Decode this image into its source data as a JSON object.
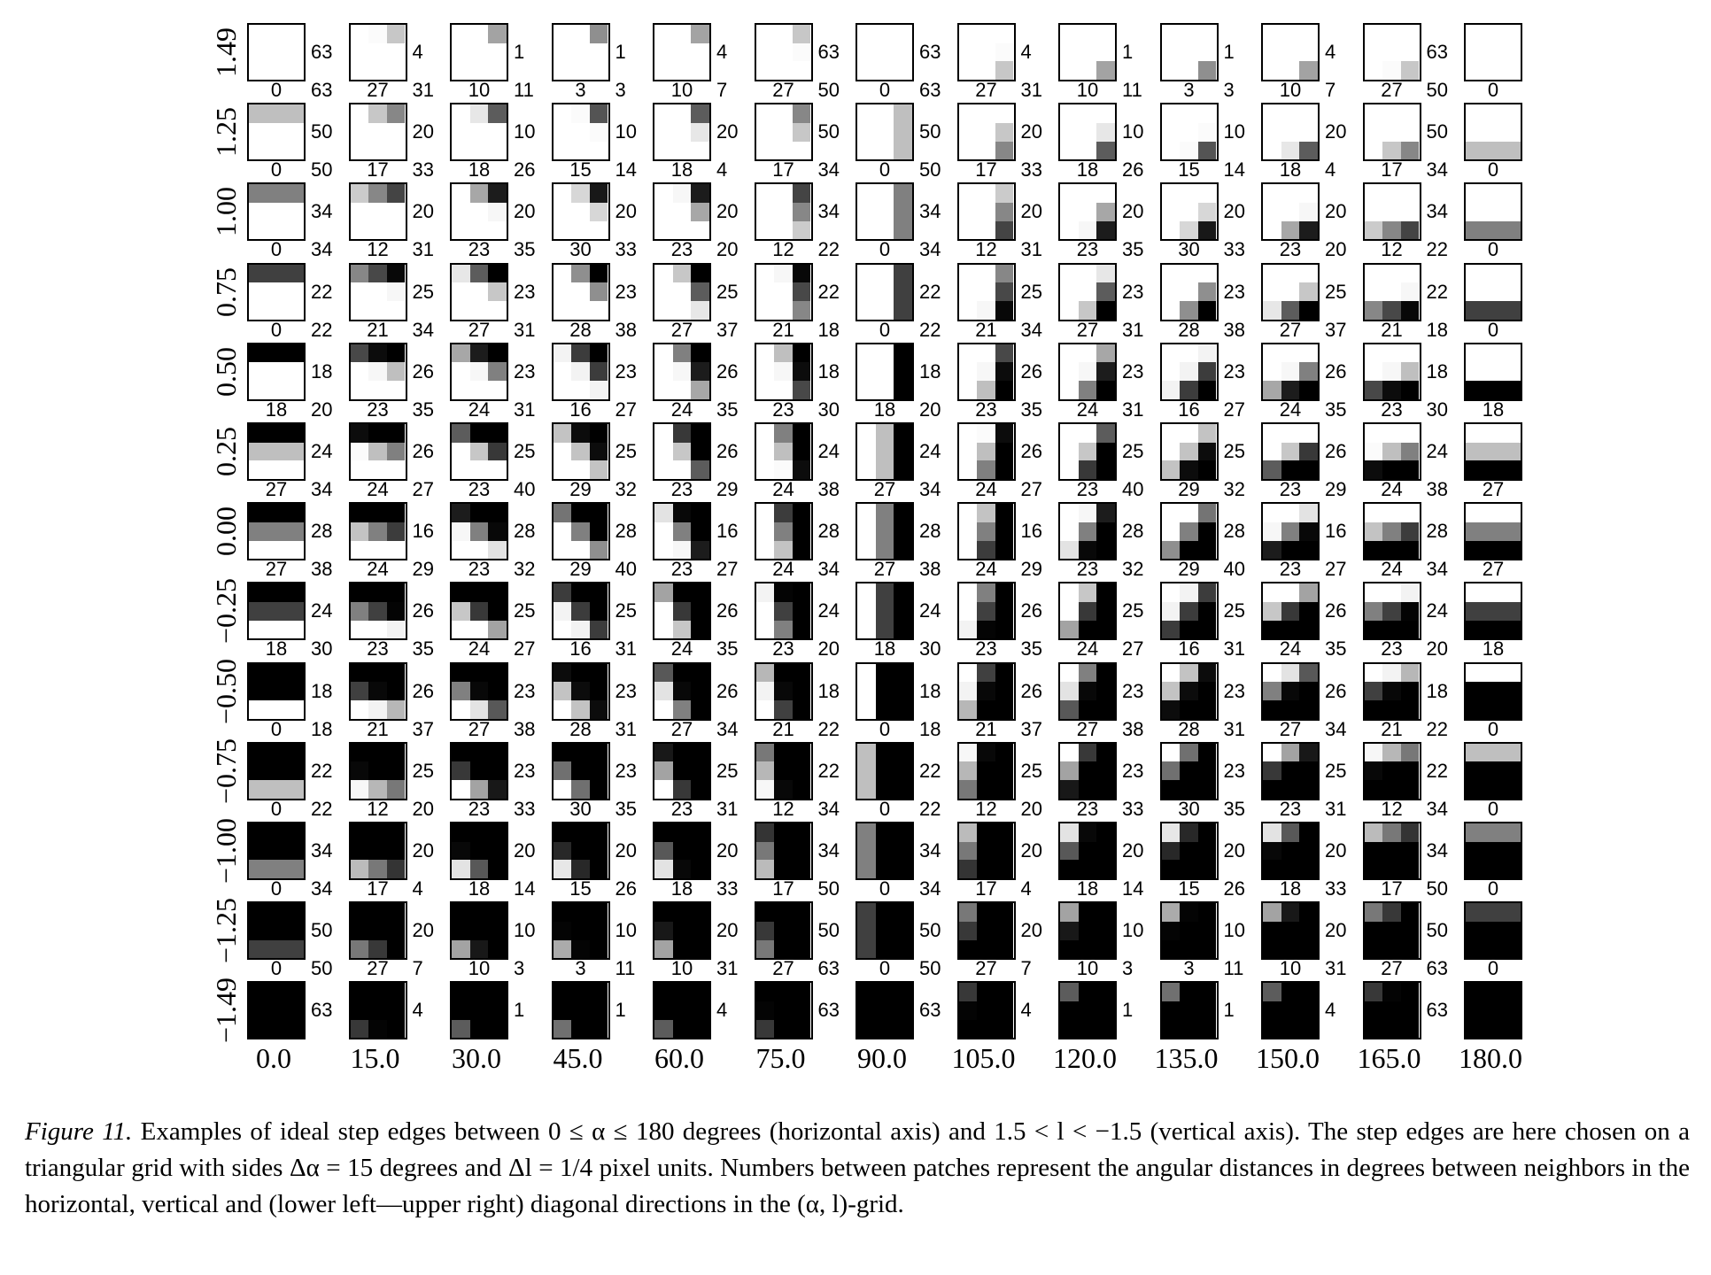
{
  "figure": {
    "alpha_labels": [
      "0.0",
      "15.0",
      "30.0",
      "45.0",
      "60.0",
      "75.0",
      "90.0",
      "105.0",
      "120.0",
      "135.0",
      "150.0",
      "165.0",
      "180.0"
    ],
    "l_labels": [
      "1.49",
      "1.25",
      "1.00",
      "0.75",
      "0.50",
      "0.25",
      "0.00",
      "−0.25",
      "−0.50",
      "−0.75",
      "−1.00",
      "−1.25",
      "−1.49"
    ],
    "horizontal_distances": [
      [
        "63",
        "4",
        "1",
        "1",
        "4",
        "63",
        "63",
        "4",
        "1",
        "1",
        "4",
        "63"
      ],
      [
        "50",
        "20",
        "10",
        "10",
        "20",
        "50",
        "50",
        "20",
        "10",
        "10",
        "20",
        "50"
      ],
      [
        "34",
        "20",
        "20",
        "20",
        "20",
        "34",
        "34",
        "20",
        "20",
        "20",
        "20",
        "34"
      ],
      [
        "22",
        "25",
        "23",
        "23",
        "25",
        "22",
        "22",
        "25",
        "23",
        "23",
        "25",
        "22"
      ],
      [
        "18",
        "26",
        "23",
        "23",
        "26",
        "18",
        "18",
        "26",
        "23",
        "23",
        "26",
        "18"
      ],
      [
        "24",
        "26",
        "25",
        "25",
        "26",
        "24",
        "24",
        "26",
        "25",
        "25",
        "26",
        "24"
      ],
      [
        "28",
        "16",
        "28",
        "28",
        "16",
        "28",
        "28",
        "16",
        "28",
        "28",
        "16",
        "28"
      ],
      [
        "24",
        "26",
        "25",
        "25",
        "26",
        "24",
        "24",
        "26",
        "25",
        "25",
        "26",
        "24"
      ],
      [
        "18",
        "26",
        "23",
        "23",
        "26",
        "18",
        "18",
        "26",
        "23",
        "23",
        "26",
        "18"
      ],
      [
        "22",
        "25",
        "23",
        "23",
        "25",
        "22",
        "22",
        "25",
        "23",
        "23",
        "25",
        "22"
      ],
      [
        "34",
        "20",
        "20",
        "20",
        "20",
        "34",
        "34",
        "20",
        "20",
        "20",
        "20",
        "34"
      ],
      [
        "50",
        "20",
        "10",
        "10",
        "20",
        "50",
        "50",
        "20",
        "10",
        "10",
        "20",
        "50"
      ],
      [
        "63",
        "4",
        "1",
        "1",
        "4",
        "63",
        "63",
        "4",
        "1",
        "1",
        "4",
        "63"
      ]
    ],
    "vertical_distances": [
      [
        "0",
        "27",
        "10",
        "3",
        "10",
        "27",
        "0",
        "27",
        "10",
        "3",
        "10",
        "27",
        "0"
      ],
      [
        "0",
        "17",
        "18",
        "15",
        "18",
        "17",
        "0",
        "17",
        "18",
        "15",
        "18",
        "17",
        "0"
      ],
      [
        "0",
        "12",
        "23",
        "30",
        "23",
        "12",
        "0",
        "12",
        "23",
        "30",
        "23",
        "12",
        "0"
      ],
      [
        "0",
        "21",
        "27",
        "28",
        "27",
        "21",
        "0",
        "21",
        "27",
        "28",
        "27",
        "21",
        "0"
      ],
      [
        "18",
        "23",
        "24",
        "16",
        "24",
        "23",
        "18",
        "23",
        "24",
        "16",
        "24",
        "23",
        "18"
      ],
      [
        "27",
        "24",
        "23",
        "29",
        "23",
        "24",
        "27",
        "24",
        "23",
        "29",
        "23",
        "24",
        "27"
      ],
      [
        "27",
        "24",
        "23",
        "29",
        "23",
        "24",
        "27",
        "24",
        "23",
        "29",
        "23",
        "24",
        "27"
      ],
      [
        "18",
        "23",
        "24",
        "16",
        "24",
        "23",
        "18",
        "23",
        "24",
        "16",
        "24",
        "23",
        "18"
      ],
      [
        "0",
        "21",
        "27",
        "28",
        "27",
        "21",
        "0",
        "21",
        "27",
        "28",
        "27",
        "21",
        "0"
      ],
      [
        "0",
        "12",
        "23",
        "30",
        "23",
        "12",
        "0",
        "12",
        "23",
        "30",
        "23",
        "12",
        "0"
      ],
      [
        "0",
        "17",
        "18",
        "15",
        "18",
        "17",
        "0",
        "17",
        "18",
        "15",
        "18",
        "17",
        "0"
      ],
      [
        "0",
        "27",
        "10",
        "3",
        "10",
        "27",
        "0",
        "27",
        "10",
        "3",
        "10",
        "27",
        "0"
      ]
    ],
    "diagonal_distances": [
      [
        "63",
        "31",
        "11",
        "3",
        "7",
        "50",
        "63",
        "31",
        "11",
        "3",
        "7",
        "50"
      ],
      [
        "50",
        "33",
        "26",
        "14",
        "4",
        "34",
        "50",
        "33",
        "26",
        "14",
        "4",
        "34"
      ],
      [
        "34",
        "31",
        "35",
        "33",
        "20",
        "22",
        "34",
        "31",
        "35",
        "33",
        "20",
        "22"
      ],
      [
        "22",
        "34",
        "31",
        "38",
        "37",
        "18",
        "22",
        "34",
        "31",
        "38",
        "37",
        "18"
      ],
      [
        "20",
        "35",
        "31",
        "27",
        "35",
        "30",
        "20",
        "35",
        "31",
        "27",
        "35",
        "30"
      ],
      [
        "34",
        "27",
        "40",
        "32",
        "29",
        "38",
        "34",
        "27",
        "40",
        "32",
        "29",
        "38"
      ],
      [
        "38",
        "29",
        "32",
        "40",
        "27",
        "34",
        "38",
        "29",
        "32",
        "40",
        "27",
        "34"
      ],
      [
        "30",
        "35",
        "27",
        "31",
        "35",
        "20",
        "30",
        "35",
        "27",
        "31",
        "35",
        "20"
      ],
      [
        "18",
        "37",
        "38",
        "31",
        "34",
        "22",
        "18",
        "37",
        "38",
        "31",
        "34",
        "22"
      ],
      [
        "22",
        "20",
        "33",
        "35",
        "31",
        "34",
        "22",
        "20",
        "33",
        "35",
        "31",
        "34"
      ],
      [
        "34",
        "4",
        "14",
        "26",
        "33",
        "50",
        "34",
        "4",
        "14",
        "26",
        "33",
        "50"
      ],
      [
        "50",
        "7",
        "3",
        "11",
        "31",
        "63",
        "50",
        "7",
        "3",
        "11",
        "31",
        "63"
      ]
    ]
  },
  "caption": {
    "label": "Figure 11.",
    "text": "Examples of ideal step edges between 0 ≤ α ≤ 180 degrees (horizontal axis) and 1.5 < l < −1.5 (vertical axis). The step edges are here chosen on a triangular grid with sides Δα = 15 degrees and Δl = 1/4 pixel units. Numbers between patches represent the angular distances in degrees between neighbors in the horizontal, vertical and (lower left—upper right) diagonal directions in the (α, l)-grid."
  }
}
